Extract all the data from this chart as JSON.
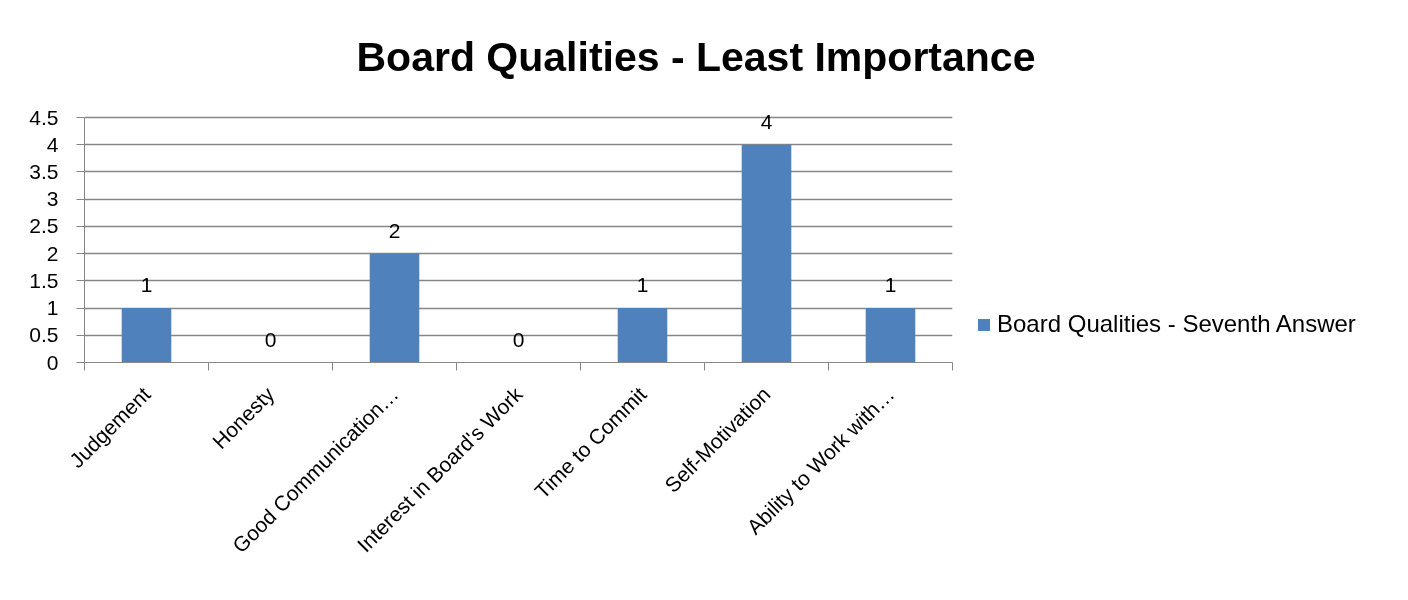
{
  "chart_data": {
    "type": "bar",
    "title": "Board Qualities - Least Importance",
    "categories": [
      "Judgement",
      "Honesty",
      "Good Communication…",
      "Interest in Board's Work",
      "Time to Commit",
      "Self-Motivation",
      "Ability to Work with…"
    ],
    "series": [
      {
        "name": "Board Qualities - Seventh Answer",
        "color": "#4f81bd",
        "values": [
          1,
          0,
          2,
          0,
          1,
          4,
          1
        ]
      }
    ],
    "ylim": [
      0,
      4.5
    ],
    "yticks": [
      0,
      0.5,
      1,
      1.5,
      2,
      2.5,
      3,
      3.5,
      4,
      4.5
    ],
    "grid": "y",
    "legend": "right",
    "data_labels": true
  }
}
